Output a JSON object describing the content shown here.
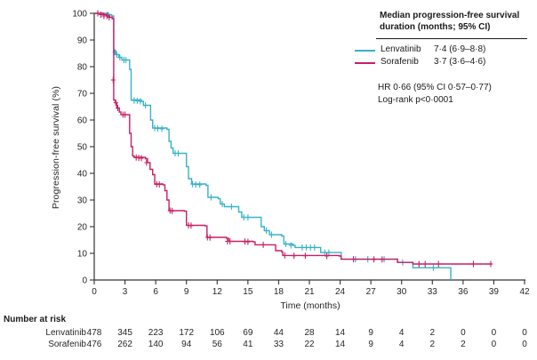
{
  "figure": {
    "background": "#ffffff",
    "axis_color": "#333333",
    "text_color": "#262626"
  },
  "chart_data": {
    "type": "line",
    "subtype": "kaplan-meier-step",
    "xlabel": "Time (months)",
    "ylabel": "Progression-free survival (%)",
    "xlim": [
      0,
      42
    ],
    "ylim": [
      0,
      100
    ],
    "xticks": [
      0,
      3,
      6,
      9,
      12,
      15,
      18,
      21,
      24,
      27,
      30,
      33,
      36,
      39,
      42
    ],
    "yticks": [
      0,
      10,
      20,
      30,
      40,
      50,
      60,
      70,
      80,
      90,
      100
    ],
    "grid": false,
    "legend_position": "top-right",
    "series": [
      {
        "name": "Lenvatinib",
        "color": "#38b2c8",
        "median_text": "7·4 (6·9–8·8)",
        "points": [
          [
            0,
            100
          ],
          [
            1.4,
            99.5
          ],
          [
            1.7,
            99
          ],
          [
            1.9,
            86
          ],
          [
            2.1,
            84.5
          ],
          [
            2.4,
            83.5
          ],
          [
            2.7,
            82.5
          ],
          [
            3.3,
            82.5
          ],
          [
            3.45,
            79
          ],
          [
            3.6,
            67.5
          ],
          [
            4.6,
            67
          ],
          [
            4.8,
            65.5
          ],
          [
            5.3,
            65.5
          ],
          [
            5.5,
            60
          ],
          [
            5.7,
            57
          ],
          [
            7.1,
            56.5
          ],
          [
            7.3,
            52
          ],
          [
            7.5,
            49.5
          ],
          [
            7.7,
            47.5
          ],
          [
            8.8,
            47.5
          ],
          [
            9.0,
            42.5
          ],
          [
            9.2,
            38
          ],
          [
            9.5,
            36
          ],
          [
            10.9,
            35.5
          ],
          [
            11.1,
            31
          ],
          [
            12.1,
            30.5
          ],
          [
            12.3,
            28.5
          ],
          [
            12.7,
            27.5
          ],
          [
            13.9,
            27.5
          ],
          [
            14.1,
            25.5
          ],
          [
            14.4,
            23.5
          ],
          [
            16.1,
            23.5
          ],
          [
            16.3,
            20
          ],
          [
            16.6,
            18.5
          ],
          [
            17.1,
            17
          ],
          [
            18.3,
            16.5
          ],
          [
            18.5,
            13.5
          ],
          [
            19.4,
            13
          ],
          [
            19.6,
            12.2
          ],
          [
            21.9,
            12.2
          ],
          [
            22.1,
            10.3
          ],
          [
            23.9,
            10.3
          ],
          [
            24.1,
            7.8
          ],
          [
            29.4,
            7.8
          ],
          [
            29.6,
            6.6
          ],
          [
            30.9,
            6.6
          ],
          [
            31.1,
            4.6
          ],
          [
            34.7,
            4.6
          ],
          [
            34.8,
            0
          ]
        ],
        "censors": [
          [
            1.3,
            99.5
          ],
          [
            2.0,
            85.5
          ],
          [
            2.2,
            84.5
          ],
          [
            2.5,
            83.5
          ],
          [
            2.9,
            82.5
          ],
          [
            3.1,
            82.5
          ],
          [
            3.9,
            67.3
          ],
          [
            4.2,
            67.2
          ],
          [
            4.5,
            67
          ],
          [
            5.0,
            65.5
          ],
          [
            5.9,
            57
          ],
          [
            6.2,
            56.8
          ],
          [
            6.6,
            56.7
          ],
          [
            7.9,
            47.5
          ],
          [
            8.2,
            47.5
          ],
          [
            9.6,
            36
          ],
          [
            9.9,
            35.8
          ],
          [
            10.3,
            35.7
          ],
          [
            11.4,
            31
          ],
          [
            12.5,
            28.5
          ],
          [
            13.4,
            27.5
          ],
          [
            14.6,
            23.5
          ],
          [
            15.0,
            23.5
          ],
          [
            16.8,
            18.5
          ],
          [
            17.3,
            17
          ],
          [
            18.7,
            13.5
          ],
          [
            19.2,
            13
          ],
          [
            20.3,
            12.2
          ],
          [
            20.7,
            12.2
          ],
          [
            21.1,
            12.2
          ],
          [
            21.5,
            12.2
          ],
          [
            22.5,
            10.3
          ],
          [
            22.9,
            10.3
          ],
          [
            25.5,
            7.8
          ],
          [
            26.7,
            7.8
          ],
          [
            28.3,
            7.8
          ],
          [
            30.1,
            6.6
          ],
          [
            33.1,
            4.6
          ]
        ]
      },
      {
        "name": "Sorafenib",
        "color": "#c81f63",
        "median_text": "3·7 (3·6–4·6)",
        "points": [
          [
            0,
            100
          ],
          [
            0.9,
            99.5
          ],
          [
            1.2,
            99
          ],
          [
            1.5,
            98.5
          ],
          [
            1.75,
            98
          ],
          [
            1.9,
            67.5
          ],
          [
            2.05,
            66.5
          ],
          [
            2.2,
            64.5
          ],
          [
            2.45,
            63
          ],
          [
            2.6,
            62
          ],
          [
            3.3,
            62
          ],
          [
            3.45,
            55
          ],
          [
            3.6,
            50
          ],
          [
            3.75,
            46.5
          ],
          [
            3.9,
            46
          ],
          [
            5.0,
            45.5
          ],
          [
            5.2,
            44
          ],
          [
            5.45,
            41.5
          ],
          [
            5.7,
            39.5
          ],
          [
            5.9,
            36
          ],
          [
            6.7,
            35.7
          ],
          [
            6.9,
            33.5
          ],
          [
            7.1,
            30
          ],
          [
            7.3,
            26
          ],
          [
            8.8,
            25.8
          ],
          [
            9.0,
            20.5
          ],
          [
            10.8,
            20.3
          ],
          [
            11.0,
            16
          ],
          [
            12.9,
            15.7
          ],
          [
            13.1,
            14.5
          ],
          [
            15.5,
            14.3
          ],
          [
            15.7,
            13.2
          ],
          [
            17.5,
            13.2
          ],
          [
            17.7,
            11
          ],
          [
            18.3,
            10.5
          ],
          [
            18.4,
            9.2
          ],
          [
            23.9,
            9
          ],
          [
            24.1,
            7.8
          ],
          [
            29.4,
            7.8
          ],
          [
            29.6,
            6.6
          ],
          [
            30.9,
            6.6
          ],
          [
            31.1,
            6
          ],
          [
            38.8,
            6
          ]
        ],
        "censors": [
          [
            0.35,
            100
          ],
          [
            0.65,
            99.5
          ],
          [
            0.95,
            99
          ],
          [
            1.25,
            99
          ],
          [
            1.45,
            98.5
          ],
          [
            1.85,
            75
          ],
          [
            2.1,
            66.5
          ],
          [
            2.3,
            64.5
          ],
          [
            2.8,
            62
          ],
          [
            3.0,
            62
          ],
          [
            4.1,
            45.9
          ],
          [
            4.35,
            45.8
          ],
          [
            4.6,
            45.7
          ],
          [
            5.1,
            44
          ],
          [
            6.1,
            35.9
          ],
          [
            6.35,
            35.8
          ],
          [
            7.4,
            26
          ],
          [
            7.6,
            25.9
          ],
          [
            9.2,
            20.5
          ],
          [
            9.45,
            20.4
          ],
          [
            11.05,
            16
          ],
          [
            11.3,
            15.9
          ],
          [
            13.0,
            14.5
          ],
          [
            13.25,
            14.5
          ],
          [
            14.7,
            14.4
          ],
          [
            15.0,
            14.3
          ],
          [
            16.5,
            13.2
          ],
          [
            18.6,
            9.2
          ],
          [
            19.5,
            9.1
          ],
          [
            20.6,
            9.1
          ],
          [
            22.7,
            9
          ],
          [
            25.3,
            7.8
          ],
          [
            27.3,
            7.7
          ],
          [
            28.1,
            7.7
          ],
          [
            31.7,
            6
          ],
          [
            32.3,
            6
          ],
          [
            33.6,
            6
          ],
          [
            37.0,
            6
          ],
          [
            38.7,
            6
          ]
        ]
      }
    ],
    "legend": {
      "title_line1": "Median progression-free survival",
      "title_line2": "duration (months; 95% CI)",
      "entries": [
        {
          "name": "Lenvatinib",
          "value": "7·4 (6·9–8·8)",
          "color": "#38b2c8"
        },
        {
          "name": "Sorafenib",
          "value": "3·7 (3·6–4·6)",
          "color": "#c81f63"
        }
      ],
      "hr_text": "HR 0·66 (95% CI 0·57–0·77)",
      "logrank_text": "Log-rank p<0·0001"
    },
    "number_at_risk": {
      "label": "Number at risk",
      "times": [
        0,
        3,
        6,
        9,
        12,
        15,
        18,
        21,
        24,
        27,
        30,
        33,
        36,
        39,
        42
      ],
      "rows": [
        {
          "name": "Lenvatinib",
          "counts": [
            478,
            345,
            223,
            172,
            106,
            69,
            44,
            28,
            14,
            9,
            4,
            2,
            0,
            0,
            0
          ]
        },
        {
          "name": "Sorafenib",
          "counts": [
            476,
            262,
            140,
            94,
            56,
            41,
            33,
            22,
            14,
            9,
            4,
            2,
            2,
            0,
            0
          ]
        }
      ]
    }
  }
}
